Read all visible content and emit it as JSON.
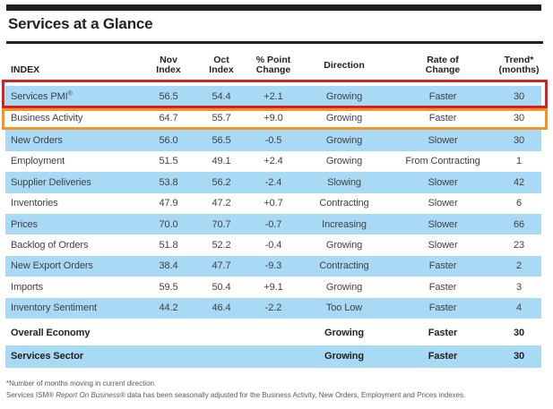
{
  "title": "Services at a Glance",
  "symbols": {
    "registered": "®"
  },
  "header": {
    "index_label": "INDEX",
    "columns": [
      {
        "line1": "Nov",
        "line2": "Index"
      },
      {
        "line1": "Oct",
        "line2": "Index"
      },
      {
        "line1": "% Point",
        "line2": "Change"
      },
      {
        "line1": "Direction",
        "line2": ""
      },
      {
        "line1": "Rate of",
        "line2": "Change"
      },
      {
        "line1": "Trend*",
        "line2": "(months)"
      }
    ]
  },
  "rows": [
    {
      "index": "Services PMI",
      "registered": true,
      "nov": "56.5",
      "oct": "54.4",
      "change": "+2.1",
      "direction": "Growing",
      "rate": "Faster",
      "trend": "30",
      "shade": true,
      "highlight": "red"
    },
    {
      "index": "Business Activity",
      "nov": "64.7",
      "oct": "55.7",
      "change": "+9.0",
      "direction": "Growing",
      "rate": "Faster",
      "trend": "30",
      "shade": false,
      "highlight": "orange",
      "tall": true
    },
    {
      "index": "New Orders",
      "nov": "56.0",
      "oct": "56.5",
      "change": "-0.5",
      "direction": "Growing",
      "rate": "Slower",
      "trend": "30",
      "shade": true
    },
    {
      "index": "Employment",
      "nov": "51.5",
      "oct": "49.1",
      "change": "+2.4",
      "direction": "Growing",
      "rate": "From Contracting",
      "trend": "1",
      "shade": false
    },
    {
      "index": "Supplier Deliveries",
      "nov": "53.8",
      "oct": "56.2",
      "change": "-2.4",
      "direction": "Slowing",
      "rate": "Slower",
      "trend": "42",
      "shade": true
    },
    {
      "index": "Inventories",
      "nov": "47.9",
      "oct": "47.2",
      "change": "+0.7",
      "direction": "Contracting",
      "rate": "Slower",
      "trend": "6",
      "shade": false
    },
    {
      "index": "Prices",
      "nov": "70.0",
      "oct": "70.7",
      "change": "-0.7",
      "direction": "Increasing",
      "rate": "Slower",
      "trend": "66",
      "shade": true
    },
    {
      "index": "Backlog of Orders",
      "nov": "51.8",
      "oct": "52.2",
      "change": "-0.4",
      "direction": "Growing",
      "rate": "Slower",
      "trend": "23",
      "shade": false
    },
    {
      "index": "New Export Orders",
      "nov": "38.4",
      "oct": "47.7",
      "change": "-9.3",
      "direction": "Contracting",
      "rate": "Faster",
      "trend": "2",
      "shade": true
    },
    {
      "index": "Imports",
      "nov": "59.5",
      "oct": "50.4",
      "change": "+9.1",
      "direction": "Growing",
      "rate": "Faster",
      "trend": "3",
      "shade": false
    },
    {
      "index": "Inventory Sentiment",
      "nov": "44.2",
      "oct": "46.4",
      "change": "-2.2",
      "direction": "Too Low",
      "rate": "Faster",
      "trend": "4",
      "shade": true
    },
    {
      "index": "Overall Economy",
      "nov": "",
      "oct": "",
      "change": "",
      "direction": "Growing",
      "rate": "Faster",
      "trend": "30",
      "shade": false,
      "bold": true,
      "gap": "lg"
    },
    {
      "index": "Services Sector",
      "nov": "",
      "oct": "",
      "change": "",
      "direction": "Growing",
      "rate": "Faster",
      "trend": "30",
      "shade": true,
      "bold": true,
      "gap": "sm"
    }
  ],
  "footnotes": {
    "line1": "*Number of months moving in current direction.",
    "line2_pre": "Services ISM® ",
    "line2_italic": "Report On Business®",
    "line2_post": " data has been seasonally adjusted for the Business Activity, New Orders, Employment and Prices indexes."
  },
  "colors": {
    "row_blue": "#a9daf5",
    "highlight_red": "#d2232a",
    "highlight_orange": "#f6921e",
    "bar_black": "#231f20",
    "ink": "#231f20"
  }
}
